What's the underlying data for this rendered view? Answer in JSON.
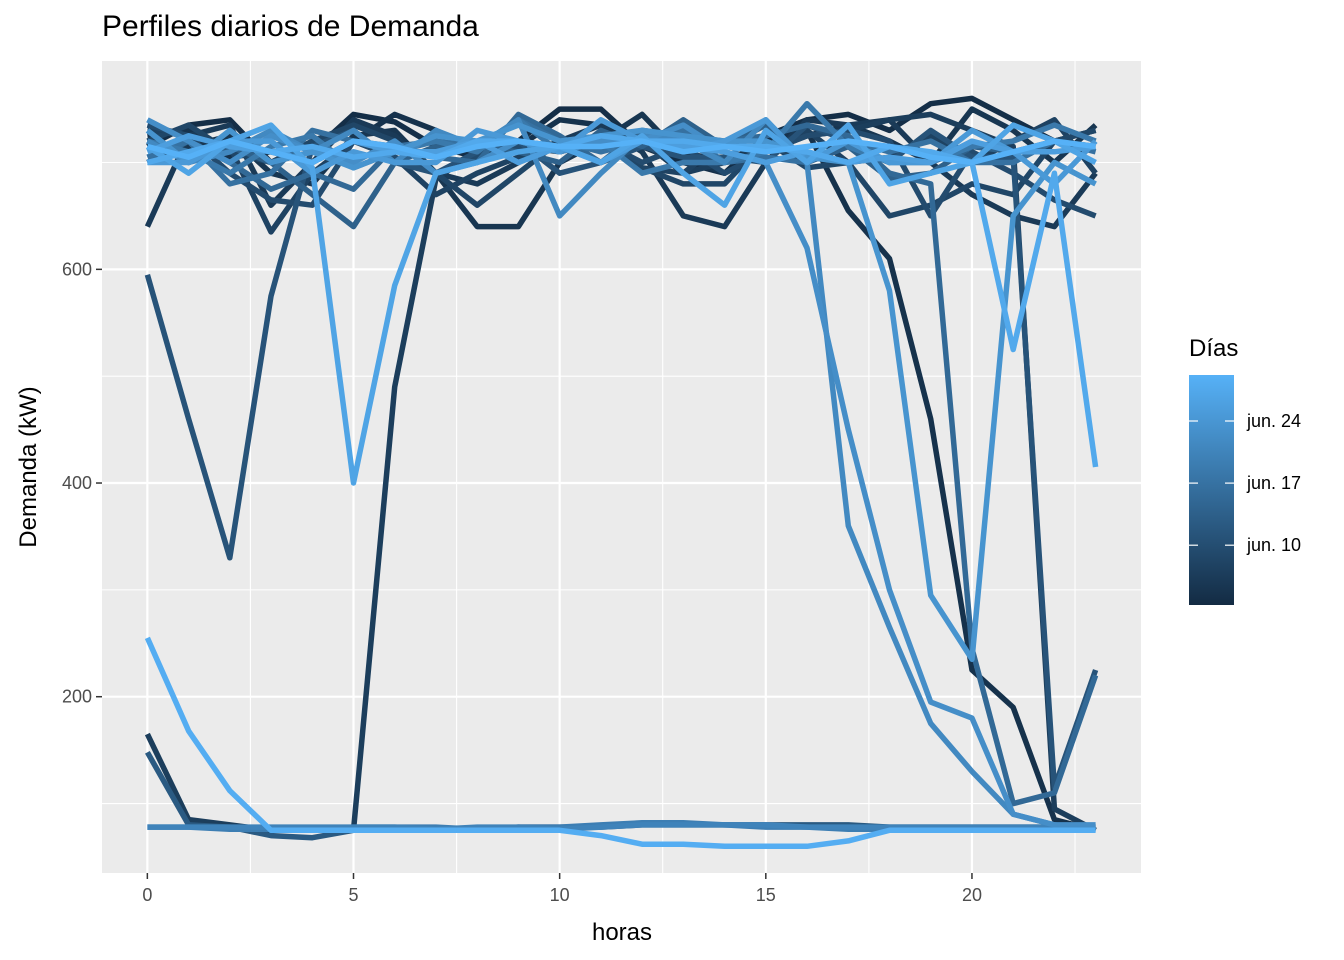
{
  "chart_data": {
    "type": "line",
    "title": "Perfiles diarios de Demanda",
    "xlabel": "horas",
    "ylabel": "Demanda (kW)",
    "xlim": [
      -1.1,
      24.1
    ],
    "ylim": [
      35,
      795
    ],
    "x_ticks": [
      0,
      5,
      10,
      15,
      20
    ],
    "y_ticks": [
      200,
      400,
      600
    ],
    "grid": true,
    "legend": {
      "title": "Días",
      "position": "right",
      "labels": [
        "jun. 24",
        "jun. 17",
        "jun. 10"
      ],
      "color_low": "#132B43",
      "color_high": "#56B1F7"
    },
    "x": [
      0,
      1,
      2,
      3,
      4,
      5,
      6,
      7,
      8,
      9,
      10,
      11,
      12,
      13,
      14,
      15,
      16,
      17,
      18,
      19,
      20,
      21,
      22,
      23
    ],
    "series": [
      {
        "t": 0.02,
        "values": [
          715,
          735,
          740,
          700,
          710,
          745,
          738,
          715,
          705,
          720,
          750,
          750,
          715,
          700,
          690,
          725,
          740,
          745,
          730,
          755,
          760,
          740,
          720,
          730
        ]
      },
      {
        "t": 0.05,
        "values": [
          725,
          730,
          705,
          710,
          700,
          720,
          745,
          730,
          710,
          715,
          740,
          735,
          720,
          710,
          700,
          720,
          730,
          655,
          610,
          460,
          225,
          190,
          85,
          75
        ]
      },
      {
        "t": 0.08,
        "values": [
          700,
          715,
          725,
          690,
          680,
          725,
          730,
          690,
          640,
          640,
          700,
          720,
          745,
          705,
          690,
          710,
          725,
          735,
          720,
          700,
          750,
          730,
          700,
          735
        ]
      },
      {
        "t": 0.11,
        "values": [
          640,
          725,
          735,
          660,
          700,
          740,
          725,
          690,
          680,
          700,
          720,
          735,
          710,
          650,
          640,
          700,
          740,
          735,
          740,
          700,
          670,
          650,
          640,
          690
        ]
      },
      {
        "t": 0.14,
        "values": [
          165,
          85,
          80,
          75,
          75,
          75,
          490,
          685,
          710,
          720,
          715,
          720,
          720,
          690,
          700,
          715,
          725,
          730,
          740,
          745,
          730,
          715,
          95,
          75
        ]
      },
      {
        "t": 0.17,
        "values": [
          730,
          725,
          715,
          635,
          690,
          720,
          705,
          670,
          690,
          705,
          720,
          720,
          695,
          690,
          720,
          710,
          730,
          700,
          705,
          725,
          700,
          720,
          740,
          690
        ]
      },
      {
        "t": 0.2,
        "values": [
          720,
          735,
          710,
          700,
          720,
          735,
          720,
          690,
          660,
          690,
          720,
          725,
          695,
          680,
          680,
          720,
          695,
          700,
          650,
          660,
          680,
          670,
          720,
          730
        ]
      },
      {
        "t": 0.24,
        "values": [
          735,
          725,
          690,
          665,
          660,
          720,
          705,
          690,
          705,
          715,
          710,
          720,
          700,
          715,
          690,
          710,
          725,
          730,
          720,
          650,
          710,
          690,
          665,
          650
        ]
      },
      {
        "t": 0.3,
        "values": [
          595,
          460,
          330,
          575,
          715,
          730,
          700,
          690,
          710,
          720,
          690,
          700,
          715,
          705,
          705,
          700,
          735,
          720,
          700,
          730,
          705,
          705,
          115,
          225
        ]
      },
      {
        "t": 0.35,
        "values": [
          148,
          80,
          78,
          70,
          68,
          75,
          75,
          75,
          75,
          78,
          78,
          78,
          80,
          80,
          80,
          80,
          80,
          80,
          78,
          78,
          78,
          78,
          78,
          78
        ]
      },
      {
        "t": 0.4,
        "values": [
          720,
          700,
          715,
          700,
          670,
          640,
          700,
          715,
          715,
          710,
          700,
          730,
          715,
          740,
          715,
          735,
          700,
          715,
          685,
          690,
          715,
          710,
          720,
          715
        ]
      },
      {
        "t": 0.46,
        "values": [
          700,
          720,
          700,
          675,
          690,
          675,
          715,
          705,
          700,
          745,
          725,
          700,
          730,
          725,
          720,
          725,
          735,
          725,
          690,
          680,
          245,
          100,
          110,
          220
        ]
      },
      {
        "t": 0.52,
        "values": [
          705,
          720,
          680,
          690,
          730,
          720,
          715,
          720,
          715,
          740,
          720,
          710,
          720,
          730,
          700,
          705,
          700,
          720,
          710,
          720,
          700,
          700,
          720,
          710
        ]
      },
      {
        "t": 0.58,
        "values": [
          720,
          710,
          690,
          715,
          725,
          695,
          710,
          720,
          710,
          740,
          710,
          720,
          690,
          700,
          700,
          710,
          755,
          715,
          700,
          700,
          715,
          720,
          735,
          720
        ]
      },
      {
        "t": 0.62,
        "values": [
          78,
          78,
          76,
          76,
          76,
          78,
          78,
          78,
          76,
          78,
          78,
          80,
          82,
          82,
          80,
          78,
          78,
          76,
          76,
          76,
          76,
          76,
          76,
          76
        ]
      },
      {
        "t": 0.66,
        "values": [
          78,
          78,
          78,
          78,
          78,
          78,
          78,
          76,
          78,
          78,
          76,
          78,
          80,
          80,
          80,
          80,
          78,
          78,
          78,
          78,
          78,
          78,
          78,
          78
        ]
      },
      {
        "t": 0.7,
        "values": [
          720,
          700,
          710,
          730,
          710,
          730,
          700,
          730,
          715,
          740,
          650,
          690,
          725,
          720,
          700,
          740,
          700,
          360,
          265,
          175,
          130,
          90,
          80,
          75
        ]
      },
      {
        "t": 0.74,
        "values": [
          740,
          720,
          700,
          725,
          710,
          700,
          720,
          690,
          700,
          720,
          710,
          720,
          720,
          735,
          710,
          700,
          620,
          450,
          300,
          195,
          180,
          90,
          80,
          80
        ]
      },
      {
        "t": 0.78,
        "values": [
          730,
          700,
          730,
          700,
          710,
          695,
          710,
          725,
          720,
          735,
          720,
          725,
          730,
          725,
          720,
          720,
          705,
          700,
          580,
          295,
          235,
          650,
          700,
          680
        ]
      },
      {
        "t": 0.82,
        "values": [
          700,
          700,
          720,
          720,
          690,
          710,
          700,
          700,
          730,
          720,
          710,
          740,
          720,
          710,
          720,
          740,
          700,
          720,
          700,
          700,
          730,
          710,
          680,
          720
        ]
      },
      {
        "t": 0.86,
        "values": [
          710,
          725,
          715,
          710,
          700,
          720,
          710,
          710,
          720,
          700,
          715,
          700,
          720,
          715,
          710,
          700,
          710,
          700,
          705,
          700,
          720,
          710,
          710,
          715
        ]
      },
      {
        "t": 0.9,
        "values": [
          715,
          690,
          720,
          735,
          695,
          400,
          585,
          690,
          700,
          710,
          715,
          700,
          725,
          690,
          660,
          730,
          700,
          735,
          680,
          690,
          700,
          735,
          720,
          700
        ]
      },
      {
        "t": 0.94,
        "values": [
          700,
          710,
          720,
          710,
          715,
          705,
          710,
          705,
          720,
          720,
          715,
          725,
          720,
          720,
          715,
          715,
          710,
          700,
          715,
          710,
          700,
          525,
          690,
          415
        ]
      },
      {
        "t": 0.97,
        "values": [
          255,
          168,
          112,
          75,
          75,
          75,
          75,
          75,
          75,
          75,
          75,
          70,
          62,
          62,
          60,
          60,
          60,
          65,
          75,
          75,
          75,
          75,
          75,
          75
        ]
      },
      {
        "t": 1.0,
        "values": [
          715,
          705,
          720,
          710,
          700,
          720,
          715,
          705,
          715,
          720,
          715,
          715,
          720,
          710,
          715,
          710,
          715,
          720,
          715,
          705,
          700,
          710,
          720,
          715
        ]
      }
    ]
  }
}
